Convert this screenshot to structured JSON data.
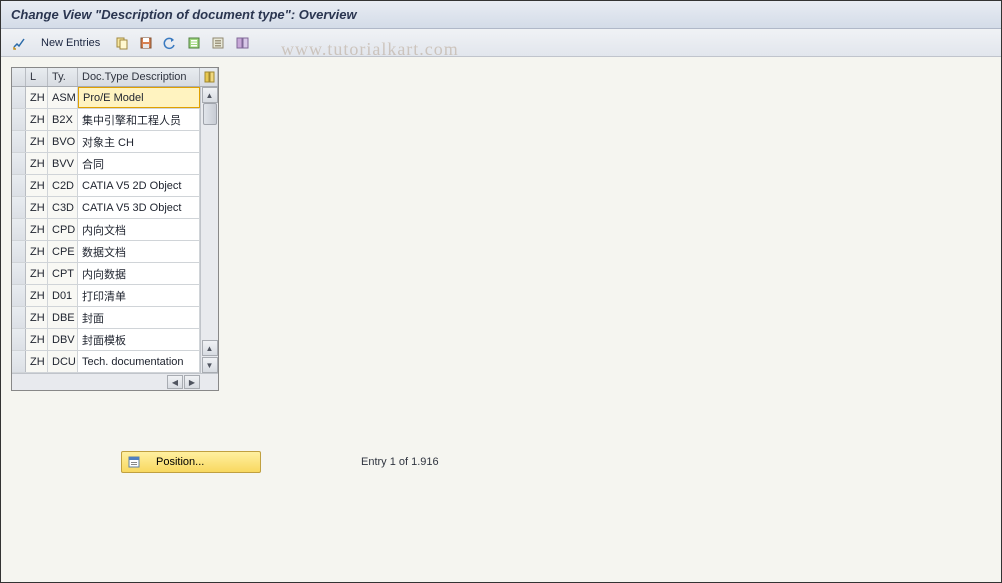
{
  "title": "Change View \"Description of document type\": Overview",
  "watermark": "www.tutorialkart.com",
  "toolbar": {
    "new_entries_label": "New Entries"
  },
  "grid": {
    "headers": {
      "lang": "L",
      "type": "Ty.",
      "desc": "Doc.Type Description"
    },
    "rows": [
      {
        "lang": "ZH",
        "type": "ASM",
        "desc": "Pro/E Model",
        "selected": true
      },
      {
        "lang": "ZH",
        "type": "B2X",
        "desc": "集中引擎和工程人员"
      },
      {
        "lang": "ZH",
        "type": "BVO",
        "desc": "对象主 CH"
      },
      {
        "lang": "ZH",
        "type": "BVV",
        "desc": "合同"
      },
      {
        "lang": "ZH",
        "type": "C2D",
        "desc": "CATIA V5 2D Object"
      },
      {
        "lang": "ZH",
        "type": "C3D",
        "desc": "CATIA V5 3D Object"
      },
      {
        "lang": "ZH",
        "type": "CPD",
        "desc": "内向文档"
      },
      {
        "lang": "ZH",
        "type": "CPE",
        "desc": "数据文档"
      },
      {
        "lang": "ZH",
        "type": "CPT",
        "desc": "内向数据"
      },
      {
        "lang": "ZH",
        "type": "D01",
        "desc": "打印清单"
      },
      {
        "lang": "ZH",
        "type": "DBE",
        "desc": "封面"
      },
      {
        "lang": "ZH",
        "type": "DBV",
        "desc": "封面模板"
      },
      {
        "lang": "ZH",
        "type": "DCU",
        "desc": "Tech. documentation"
      }
    ]
  },
  "footer": {
    "position_label": "Position...",
    "entry_text": "Entry 1 of 1.916"
  },
  "colors": {
    "title_bg_top": "#e8ecf3",
    "title_bg_bottom": "#d4dce8",
    "selected_cell": "#fff3c0",
    "position_btn_top": "#fff0a0",
    "position_btn_bottom": "#f8d860"
  }
}
